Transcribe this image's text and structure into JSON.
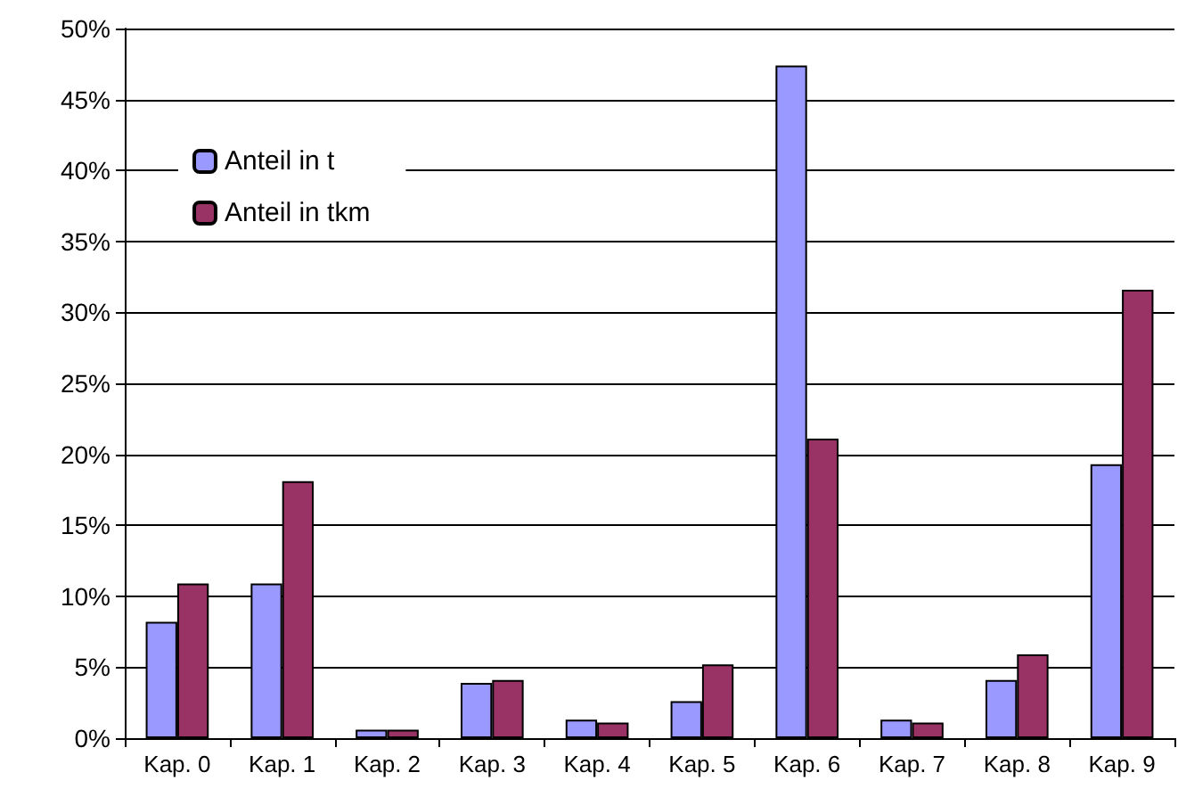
{
  "chart_data": {
    "type": "bar",
    "categories": [
      "Kap. 0",
      "Kap. 1",
      "Kap. 2",
      "Kap. 3",
      "Kap. 4",
      "Kap. 5",
      "Kap. 6",
      "Kap. 7",
      "Kap. 8",
      "Kap. 9"
    ],
    "series": [
      {
        "name": "Anteil in t",
        "color": "#9999ff",
        "values": [
          8.2,
          10.9,
          0.6,
          3.9,
          1.3,
          2.6,
          47.4,
          1.3,
          4.1,
          19.3
        ]
      },
      {
        "name": "Anteil in tkm",
        "color": "#993366",
        "values": [
          10.9,
          18.1,
          0.6,
          4.1,
          1.1,
          5.2,
          21.1,
          1.1,
          5.9,
          31.6
        ]
      }
    ],
    "ylim": [
      0,
      50
    ],
    "yticks": [
      {
        "value": 0,
        "label": "0%"
      },
      {
        "value": 5,
        "label": "5%"
      },
      {
        "value": 10,
        "label": "10%"
      },
      {
        "value": 15,
        "label": "15%"
      },
      {
        "value": 20,
        "label": "20%"
      },
      {
        "value": 25,
        "label": "25%"
      },
      {
        "value": 30,
        "label": "30%"
      },
      {
        "value": 35,
        "label": "35%"
      },
      {
        "value": 40,
        "label": "40%"
      },
      {
        "value": 45,
        "label": "45%"
      },
      {
        "value": 50,
        "label": "50%"
      }
    ],
    "grid": "y",
    "legend": "top left"
  }
}
